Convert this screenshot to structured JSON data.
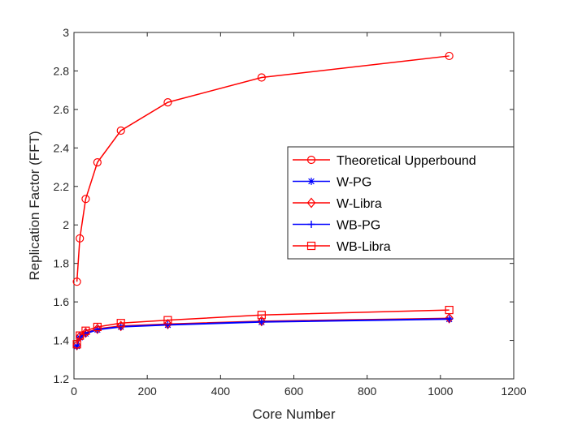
{
  "chart_data": {
    "type": "line",
    "title": "",
    "xlabel": "Core Number",
    "ylabel": "Replication Factor (FFT)",
    "xlim": [
      0,
      1200
    ],
    "ylim": [
      1.2,
      3.0
    ],
    "xticks": [
      0,
      200,
      400,
      600,
      800,
      1000,
      1200
    ],
    "xtick_labels": [
      "0",
      "200",
      "400",
      "600",
      "800",
      "1000",
      "1200"
    ],
    "yticks": [
      1.2,
      1.4,
      1.6,
      1.8,
      2.0,
      2.2,
      2.4,
      2.6,
      2.8,
      3.0
    ],
    "ytick_labels": [
      "1.2",
      "1.4",
      "1.6",
      "1.8",
      "2",
      "2.2",
      "2.4",
      "2.6",
      "2.8",
      "3"
    ],
    "grid": false,
    "box": true,
    "legend_position": "right, mid-height",
    "x": [
      8,
      16,
      32,
      64,
      128,
      256,
      512,
      1024
    ],
    "series": [
      {
        "name": "Theoretical Upperbound",
        "color": "#ff0000",
        "marker": "circle",
        "values": [
          1.705,
          1.93,
          2.135,
          2.325,
          2.49,
          2.637,
          2.766,
          2.878
        ]
      },
      {
        "name": "W-PG",
        "color": "#0000ff",
        "marker": "asterisk",
        "values": [
          1.37,
          1.415,
          1.435,
          1.455,
          1.47,
          1.48,
          1.495,
          1.51
        ]
      },
      {
        "name": "W-Libra",
        "color": "#ff0000",
        "marker": "diamond",
        "values": [
          1.375,
          1.42,
          1.44,
          1.46,
          1.475,
          1.485,
          1.5,
          1.515
        ]
      },
      {
        "name": "WB-PG",
        "color": "#0000ff",
        "marker": "plus",
        "values": [
          1.372,
          1.418,
          1.438,
          1.457,
          1.472,
          1.482,
          1.497,
          1.512
        ]
      },
      {
        "name": "WB-Libra",
        "color": "#ff0000",
        "marker": "square",
        "values": [
          1.38,
          1.425,
          1.45,
          1.47,
          1.49,
          1.505,
          1.532,
          1.558
        ]
      }
    ]
  }
}
